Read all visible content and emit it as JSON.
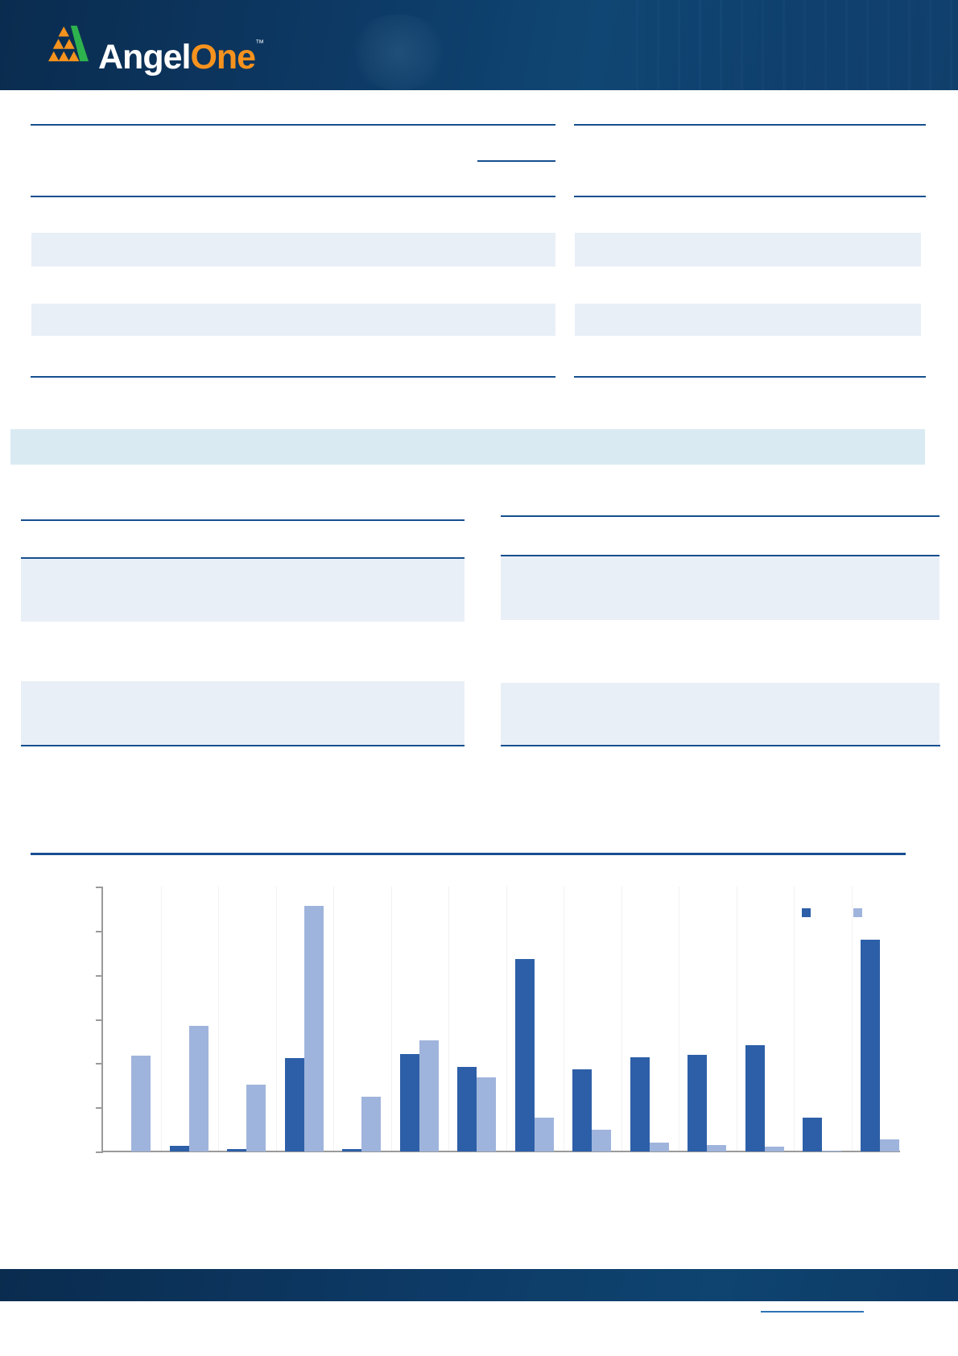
{
  "header": {
    "brand": {
      "part1": "Angel",
      "part2": "One",
      "trademark": "TM"
    }
  },
  "colors": {
    "header_navy": "#0d3a66",
    "brand_orange": "#f6921e",
    "brand_green": "#2eb24d",
    "rule_blue": "#164f8f",
    "row_band_fill": "#e9eff7",
    "section_band_fill": "#d9eaf2",
    "axis_gray": "#9a9a9a",
    "footer_link_blue": "#2e74b5",
    "bar_dark": "#2d5fa8",
    "bar_light": "#9fb4dc"
  },
  "chart_data": {
    "type": "bar",
    "title": "",
    "subtitle": "",
    "xlabel": "",
    "ylabel": "",
    "categories": [
      "",
      "",
      "",
      "",
      "",
      "",
      "",
      "",
      "",
      "",
      "",
      "",
      "",
      ""
    ],
    "category_labels_visible": false,
    "value_labels_visible": false,
    "y_ticks_unlabeled": 7,
    "ylim": [
      0,
      6
    ],
    "grid": "faint-vertical",
    "legend_position": "top-right",
    "legend_labels_visible": false,
    "series": [
      {
        "name": "series-dark-blue",
        "color": "#2d5fa8",
        "values": [
          0.0,
          0.13,
          0.05,
          2.12,
          0.05,
          2.21,
          1.92,
          4.36,
          1.86,
          2.13,
          2.19,
          2.41,
          0.77,
          4.8
        ]
      },
      {
        "name": "series-light-blue",
        "color": "#9fb4dc",
        "values": [
          2.17,
          2.85,
          1.51,
          5.56,
          1.24,
          2.52,
          1.68,
          0.77,
          0.49,
          0.2,
          0.15,
          0.11,
          0.02,
          0.27
        ]
      }
    ]
  },
  "footer": {
    "has_link_underline": true
  }
}
